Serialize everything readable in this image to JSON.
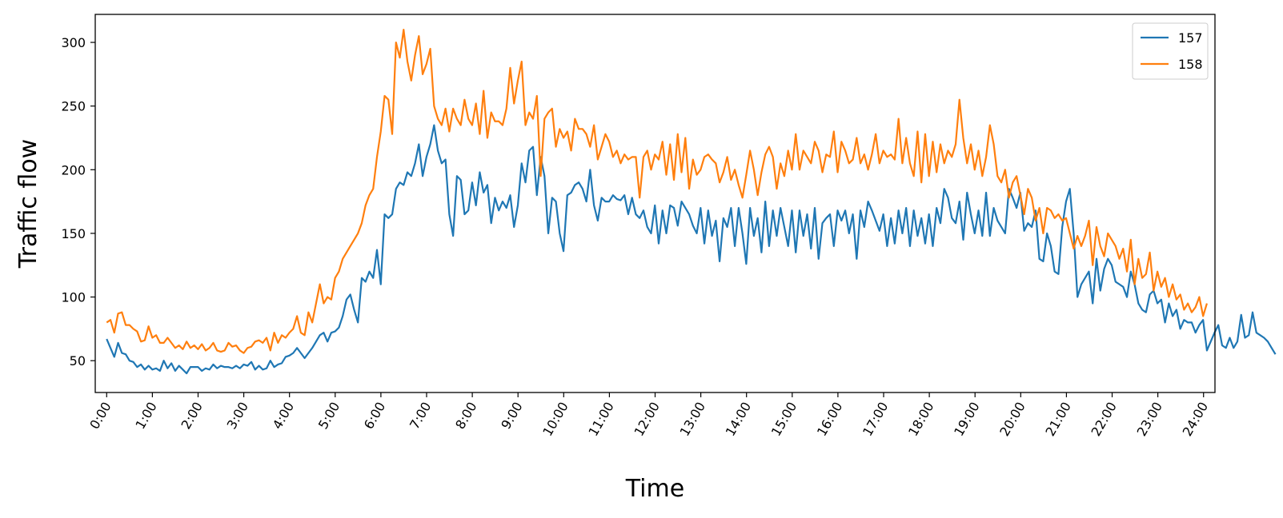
{
  "chart_data": {
    "type": "line",
    "title": "",
    "xlabel": "Time",
    "ylabel": "Traffic flow",
    "xlim": [
      -0.25,
      24.25
    ],
    "ylim": [
      25,
      322
    ],
    "grid": false,
    "legend_position": "top-right",
    "xticks": [
      0,
      1,
      2,
      3,
      4,
      5,
      6,
      7,
      8,
      9,
      10,
      11,
      12,
      13,
      14,
      15,
      16,
      17,
      18,
      19,
      20,
      21,
      22,
      23,
      24
    ],
    "xtick_labels": [
      "0:00",
      "1:00",
      "2:00",
      "3:00",
      "4:00",
      "5:00",
      "6:00",
      "7:00",
      "8:00",
      "9:00",
      "10:00",
      "11:00",
      "12:00",
      "13:00",
      "14:00",
      "15:00",
      "16:00",
      "17:00",
      "18:00",
      "19:00",
      "20:00",
      "21:00",
      "22:00",
      "23:00",
      "24:00"
    ],
    "yticks": [
      50,
      100,
      150,
      200,
      250,
      300
    ],
    "ytick_labels": [
      "50",
      "100",
      "150",
      "200",
      "250",
      "300"
    ],
    "x_step_hours": 0.0833,
    "series": [
      {
        "name": "157",
        "color": "#1f77b4",
        "values": [
          67,
          60,
          53,
          64,
          56,
          55,
          50,
          49,
          45,
          47,
          43,
          46,
          43,
          44,
          42,
          50,
          44,
          48,
          42,
          46,
          43,
          40,
          45,
          45,
          45,
          42,
          44,
          43,
          47,
          44,
          46,
          45,
          45,
          44,
          46,
          44,
          47,
          46,
          49,
          43,
          46,
          43,
          44,
          50,
          45,
          47,
          48,
          53,
          54,
          56,
          60,
          56,
          52,
          56,
          60,
          65,
          70,
          72,
          65,
          72,
          73,
          76,
          85,
          98,
          102,
          90,
          80,
          115,
          112,
          120,
          115,
          137,
          110,
          165,
          162,
          165,
          185,
          190,
          188,
          198,
          195,
          205,
          220,
          195,
          210,
          220,
          235,
          215,
          205,
          208,
          165,
          148,
          195,
          192,
          165,
          168,
          190,
          172,
          198,
          182,
          188,
          158,
          178,
          168,
          175,
          170,
          180,
          155,
          172,
          205,
          190,
          215,
          218,
          180,
          210,
          195,
          150,
          178,
          175,
          150,
          136,
          180,
          182,
          188,
          190,
          185,
          175,
          200,
          172,
          160,
          178,
          175,
          175,
          180,
          177,
          176,
          180,
          165,
          178,
          165,
          162,
          168,
          155,
          150,
          172,
          142,
          168,
          150,
          172,
          170,
          156,
          175,
          170,
          165,
          156,
          150,
          170,
          142,
          168,
          148,
          160,
          128,
          162,
          155,
          170,
          140,
          170,
          150,
          126,
          170,
          148,
          162,
          135,
          175,
          140,
          168,
          148,
          170,
          155,
          140,
          168,
          135,
          168,
          148,
          165,
          138,
          170,
          130,
          158,
          162,
          165,
          140,
          168,
          160,
          168,
          150,
          165,
          130,
          168,
          155,
          175,
          168,
          160,
          152,
          165,
          140,
          162,
          142,
          168,
          150,
          170,
          140,
          168,
          148,
          162,
          142,
          165,
          140,
          170,
          158,
          185,
          178,
          162,
          158,
          175,
          145,
          182,
          165,
          150,
          168,
          148,
          182,
          148,
          170,
          160,
          155,
          150,
          185,
          178,
          170,
          182,
          152,
          158,
          155,
          168,
          130,
          128,
          150,
          140,
          120,
          118,
          155,
          175,
          185,
          150,
          100,
          110,
          115,
          120,
          95,
          130,
          105,
          122,
          130,
          125,
          112,
          110,
          108,
          100,
          120,
          110,
          95,
          90,
          88,
          102,
          105,
          95,
          98,
          80,
          95,
          85,
          90,
          75,
          82,
          80,
          80,
          72,
          78,
          82,
          58,
          65,
          72,
          78,
          62,
          60,
          68,
          60,
          65,
          86,
          68,
          70,
          88,
          72,
          70,
          68,
          65,
          60,
          55
        ]
      },
      {
        "name": "158",
        "color": "#ff7f0e",
        "values": [
          80,
          82,
          72,
          87,
          88,
          78,
          78,
          75,
          73,
          65,
          66,
          77,
          68,
          70,
          64,
          64,
          68,
          64,
          60,
          62,
          59,
          65,
          60,
          62,
          59,
          63,
          58,
          60,
          64,
          58,
          57,
          58,
          64,
          61,
          62,
          58,
          56,
          60,
          61,
          65,
          66,
          64,
          68,
          58,
          72,
          64,
          70,
          68,
          72,
          75,
          85,
          72,
          70,
          88,
          80,
          95,
          110,
          95,
          100,
          98,
          115,
          120,
          130,
          135,
          140,
          145,
          150,
          158,
          172,
          180,
          185,
          210,
          230,
          258,
          255,
          228,
          300,
          288,
          310,
          285,
          270,
          290,
          305,
          275,
          283,
          295,
          250,
          240,
          235,
          248,
          230,
          248,
          240,
          235,
          255,
          240,
          235,
          252,
          228,
          262,
          225,
          245,
          238,
          238,
          235,
          248,
          280,
          252,
          270,
          285,
          235,
          245,
          240,
          258,
          195,
          240,
          245,
          248,
          218,
          232,
          225,
          230,
          215,
          240,
          232,
          232,
          228,
          218,
          235,
          208,
          218,
          228,
          222,
          210,
          215,
          205,
          212,
          208,
          210,
          210,
          178,
          210,
          215,
          200,
          212,
          208,
          222,
          196,
          220,
          192,
          228,
          198,
          225,
          185,
          208,
          196,
          200,
          210,
          212,
          208,
          205,
          190,
          198,
          210,
          192,
          200,
          188,
          178,
          196,
          215,
          200,
          180,
          198,
          212,
          218,
          210,
          185,
          205,
          195,
          215,
          200,
          228,
          200,
          215,
          210,
          205,
          222,
          215,
          198,
          212,
          210,
          230,
          198,
          222,
          215,
          205,
          208,
          225,
          205,
          212,
          200,
          212,
          228,
          205,
          215,
          210,
          212,
          208,
          240,
          205,
          225,
          205,
          195,
          230,
          190,
          228,
          195,
          222,
          198,
          220,
          205,
          215,
          210,
          220,
          255,
          225,
          205,
          220,
          200,
          215,
          195,
          210,
          235,
          220,
          195,
          190,
          200,
          178,
          190,
          195,
          180,
          165,
          185,
          178,
          160,
          170,
          150,
          170,
          168,
          162,
          165,
          160,
          162,
          150,
          138,
          148,
          140,
          148,
          160,
          125,
          155,
          140,
          132,
          150,
          145,
          140,
          130,
          138,
          120,
          145,
          110,
          130,
          115,
          118,
          135,
          105,
          120,
          108,
          115,
          100,
          110,
          98,
          102,
          90,
          95,
          88,
          92,
          100,
          85,
          95
        ]
      }
    ]
  }
}
